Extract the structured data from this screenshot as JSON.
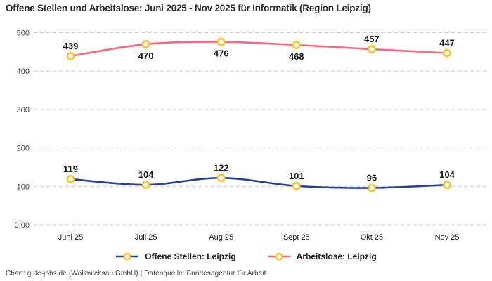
{
  "title": "Offene Stellen und Arbeitslose: Juni 2025 - Nov 2025 für Informatik (Region Leipzig)",
  "footer": "Chart: gute-jobs.de (Wollmilchsau GmbH) | Datenquelle: Bundesagentur für Arbeit",
  "chart_data": {
    "type": "line",
    "title": "Offene Stellen und Arbeitslose: Juni 2025 - Nov 2025 für Informatik (Region Leipzig)",
    "categories": [
      "Juni 25",
      "Juli 25",
      "Aug 25",
      "Sept 25",
      "Okt 25",
      "Nov 25"
    ],
    "series": [
      {
        "name": "Offene Stellen: Leipzig",
        "values": [
          119,
          104,
          122,
          101,
          96,
          104
        ],
        "color": "#24409a",
        "label_positions": [
          "above",
          "above",
          "above",
          "above",
          "above",
          "above"
        ]
      },
      {
        "name": "Arbeitslose: Leipzig",
        "values": [
          439,
          470,
          476,
          468,
          457,
          447
        ],
        "color": "#f7697d",
        "label_positions": [
          "above",
          "below",
          "below",
          "below",
          "above",
          "above"
        ]
      }
    ],
    "xlabel": "",
    "ylabel": "",
    "ylim": [
      0,
      500
    ],
    "yticks": [
      {
        "value": 0,
        "label": "0,00"
      },
      {
        "value": 100,
        "label": "100"
      },
      {
        "value": 200,
        "label": "200"
      },
      {
        "value": 300,
        "label": "300"
      },
      {
        "value": 400,
        "label": "400"
      },
      {
        "value": 500,
        "label": "500"
      }
    ],
    "grid": "horizontal-dashed",
    "legend_position": "bottom",
    "colors": {
      "marker_ring": "#fdc132",
      "marker_fill": "#ffffff",
      "gridline": "#c8c8c8",
      "tick_text": "#3d3d3d",
      "data_label_text": "#1a1a1a"
    }
  }
}
